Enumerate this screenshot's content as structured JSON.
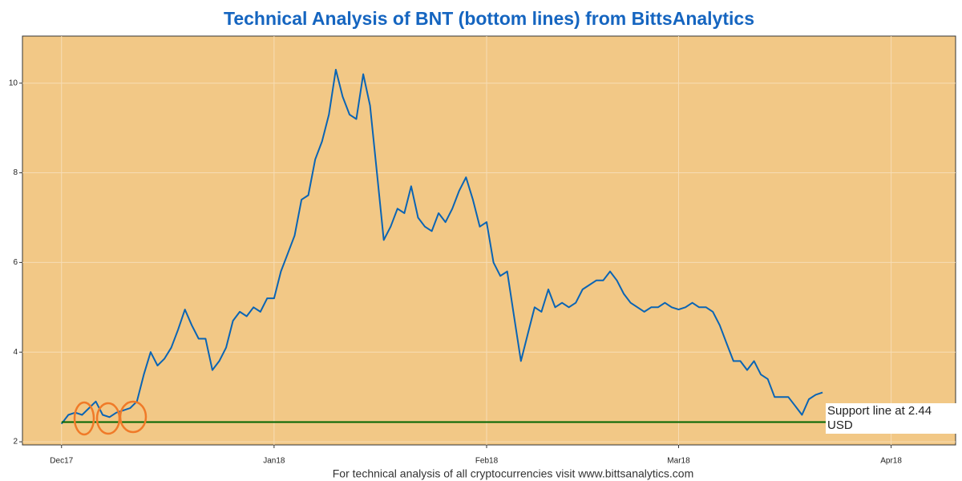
{
  "chart_data": {
    "type": "line",
    "title": "Technical Analysis of BNT (bottom lines) from BittsAnalytics",
    "footer": "For technical analysis of all cryptocurrencies visit www.bittsanalytics.com",
    "x": [
      0,
      1,
      2,
      3,
      4,
      5,
      6,
      7,
      8,
      9,
      10,
      11,
      12,
      13,
      14,
      15,
      16,
      17,
      18,
      19,
      20,
      21,
      22,
      23,
      24,
      25,
      26,
      27,
      28,
      29,
      30,
      31,
      32,
      33,
      34,
      35,
      36,
      37,
      38,
      39,
      40,
      41,
      42,
      43,
      44,
      45,
      46,
      47,
      48,
      49,
      50,
      51,
      52,
      53,
      54,
      55,
      56,
      57,
      58,
      59,
      60,
      61,
      62,
      63,
      64,
      65,
      66,
      67,
      68,
      69,
      70,
      71,
      72,
      73,
      74,
      75,
      76,
      77,
      78,
      79,
      80,
      81,
      82,
      83,
      84,
      85,
      86,
      87,
      88,
      89,
      90,
      91,
      92,
      93,
      94,
      95,
      96,
      97,
      98,
      99,
      100,
      101,
      102,
      103,
      104,
      105,
      106,
      107,
      108,
      109,
      110,
      111
    ],
    "series": [
      {
        "color": "#0a64b4",
        "values": [
          2.4,
          2.6,
          2.65,
          2.6,
          2.75,
          2.9,
          2.6,
          2.55,
          2.65,
          2.7,
          2.75,
          2.9,
          3.5,
          4.0,
          3.7,
          3.85,
          4.1,
          4.5,
          4.95,
          4.6,
          4.3,
          4.3,
          3.6,
          3.8,
          4.1,
          4.7,
          4.9,
          4.8,
          5.0,
          4.9,
          5.2,
          5.2,
          5.8,
          6.2,
          6.6,
          7.4,
          7.5,
          8.3,
          8.7,
          9.3,
          10.3,
          9.7,
          9.3,
          9.2,
          10.2,
          9.5,
          8.0,
          6.5,
          6.8,
          7.2,
          7.1,
          7.7,
          7.0,
          6.8,
          6.7,
          7.1,
          6.9,
          7.2,
          7.6,
          7.9,
          7.4,
          6.8,
          6.9,
          6.0,
          5.7,
          5.8,
          4.8,
          3.8,
          4.4,
          5.0,
          4.9,
          5.4,
          5.0,
          5.1,
          5.0,
          5.1,
          5.4,
          5.5,
          5.6,
          5.6,
          5.8,
          5.6,
          5.3,
          5.1,
          5.0,
          4.9,
          5.0,
          5.0,
          5.1,
          5.0,
          4.95,
          5.0,
          5.1,
          5.0,
          5.0,
          4.9,
          4.6,
          4.2,
          3.8,
          3.8,
          3.6,
          3.8,
          3.5,
          3.4,
          3.0,
          3.0,
          3.0,
          2.8,
          2.6,
          2.95,
          3.05,
          3.1
        ]
      }
    ],
    "support": {
      "value": 2.44,
      "label": "Support line at 2.44 USD",
      "color": "#006400"
    },
    "xlim": [
      -5.7,
      130.4
    ],
    "xticks": [
      {
        "value": 0,
        "label": "Dec17"
      },
      {
        "value": 31,
        "label": "Jan18"
      },
      {
        "value": 62,
        "label": "Feb18"
      },
      {
        "value": 90,
        "label": "Mar18"
      },
      {
        "value": 121,
        "label": "Apr18"
      }
    ],
    "ylim": [
      1.93,
      11.05
    ],
    "yticks": [
      2,
      4,
      6,
      8,
      10
    ],
    "grid": true
  }
}
